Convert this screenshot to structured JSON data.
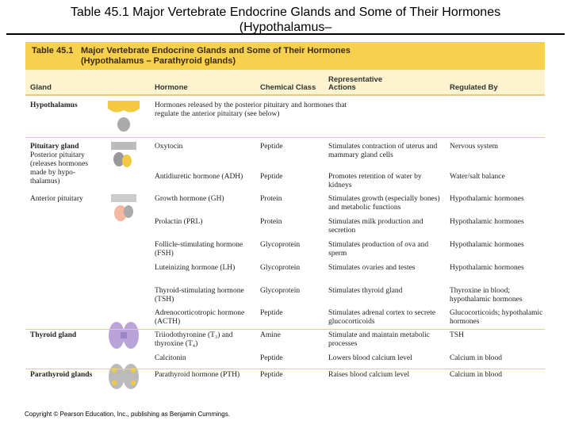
{
  "page_title": "Table 45.1  Major Vertebrate Endocrine Glands and Some of Their Hormones",
  "page_title_cut": "(Hypothalamus–",
  "table": {
    "number": "Table 45.1",
    "caption": "Major Vertebrate Endocrine Glands and Some of Their Hormones",
    "caption_sub": "(Hypothalamus – Parathyroid glands)",
    "columns": [
      "Gland",
      "Hormone",
      "Chemical Class",
      "Representative Actions",
      "Regulated By"
    ],
    "rows": [
      {
        "gland": "Hypothalamus",
        "hormone": "Hormones released by the posterior pituitary and hormones that regulate the anterior pituitary (see below)"
      },
      {
        "gland": "Pituitary gland",
        "subgland": "Posterior pituitary (releases hormones made by hypo-thalamus)",
        "hormone": "Oxytocin",
        "class": "Peptide",
        "actions": "Stimulates contraction of uterus and mammary gland cells",
        "regulated": "Nervous system"
      },
      {
        "hormone": "Antidiuretic hormone (ADH)",
        "class": "Peptide",
        "actions": "Promotes retention of water by kidneys",
        "regulated": "Water/salt balance"
      },
      {
        "subgland": "Anterior pituitary",
        "hormone": "Growth hormone (GH)",
        "class": "Protein",
        "actions": "Stimulates growth (especially bones) and metabolic functions",
        "regulated": "Hypothalamic hormones"
      },
      {
        "hormone": "Prolactin (PRL)",
        "class": "Protein",
        "actions": "Stimulates milk production and secretion",
        "regulated": "Hypothalamic hormones"
      },
      {
        "hormone": "Follicle-stimulating hormone (FSH)",
        "class": "Glycoprotein",
        "actions": "Stimulates production of ova and sperm",
        "regulated": "Hypothalamic hormones"
      },
      {
        "hormone": "Luteinizing hormone (LH)",
        "class": "Glycoprotein",
        "actions": "Stimulates ovaries and testes",
        "regulated": "Hypothalamic hormones"
      },
      {
        "hormone": "Thyroid-stimulating hormone (TSH)",
        "class": "Glycoprotein",
        "actions": "Stimulates thyroid gland",
        "regulated": "Thyroxine in blood; hypothalamic hormones"
      },
      {
        "hormone": "Adrenocorticotropic hormone (ACTH)",
        "class": "Peptide",
        "actions": "Stimulates adrenal cortex to secrete glucocorticoids",
        "regulated": "Glucocorticoids; hypothalamic hormones"
      },
      {
        "gland": "Thyroid gland",
        "hormone": "Triiodothyronine (T₃) and thyroxine (T₄)",
        "class": "Amine",
        "actions": "Stimulate and maintain metabolic processes",
        "regulated": "TSH"
      },
      {
        "hormone": "Calcitonin",
        "class": "Peptide",
        "actions": "Lowers blood calcium level",
        "regulated": "Calcium in blood"
      },
      {
        "gland": "Parathyroid glands",
        "hormone": "Parathyroid hormone (PTH)",
        "class": "Peptide",
        "actions": "Raises blood calcium level",
        "regulated": "Calcium in blood"
      }
    ]
  },
  "copyright": "Copyright © Pearson Education, Inc., publishing as Benjamin Cummings."
}
